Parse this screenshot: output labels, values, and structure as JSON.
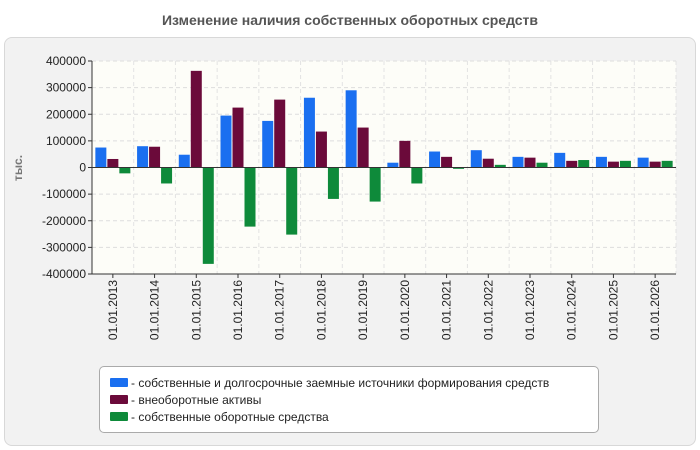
{
  "chart_data": {
    "type": "bar",
    "title": "Изменение наличия собственных оборотных средств",
    "ylabel": "тыс.",
    "xlabel": "",
    "ylim": [
      -400000,
      400000
    ],
    "yticks": [
      400000,
      300000,
      200000,
      100000,
      0,
      -100000,
      -200000,
      -300000,
      -400000
    ],
    "grid": true,
    "legend_position": "bottom",
    "categories": [
      "01.01.2013",
      "01.01.2014",
      "01.01.2015",
      "01.01.2016",
      "01.01.2017",
      "01.01.2018",
      "01.01.2019",
      "01.01.2020",
      "01.01.2021",
      "01.01.2022",
      "01.01.2023",
      "01.01.2024",
      "01.01.2025",
      "01.01.2026"
    ],
    "series": [
      {
        "name": "собственные и долгосрочные заемные источники формирования средств",
        "color": "#1a6ff0",
        "values": [
          75000,
          80000,
          48000,
          195000,
          175000,
          262000,
          290000,
          18000,
          60000,
          65000,
          40000,
          55000,
          40000,
          37000
        ]
      },
      {
        "name": "внеоборотные активы",
        "color": "#6b0a3a",
        "values": [
          32000,
          78000,
          363000,
          225000,
          255000,
          135000,
          150000,
          100000,
          40000,
          33000,
          37000,
          25000,
          22000,
          22000
        ]
      },
      {
        "name": "собственные оборотные средства",
        "color": "#0e8a3a",
        "values": [
          -22000,
          -60000,
          -362000,
          -222000,
          -252000,
          -118000,
          -128000,
          -60000,
          -5000,
          10000,
          18000,
          28000,
          25000,
          25000
        ]
      }
    ]
  }
}
